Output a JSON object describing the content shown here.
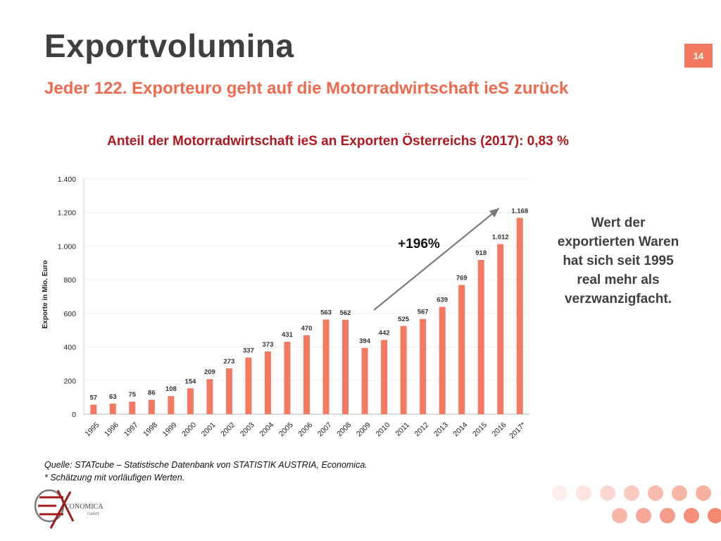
{
  "slide": {
    "title": "Exportvolumina",
    "page_number": "14",
    "subtitle": "Jeder 122. Exporteuro geht auf die Motorradwirtschaft ieS zurück",
    "side_note_lines": [
      "Wert der",
      "exportierten Waren",
      "hat sich seit 1995",
      "real mehr als",
      "verzwanzigfacht."
    ],
    "source_lines": [
      "Quelle: STATcube – Statistische Datenbank von STATISTIK AUSTRIA, Economica.",
      "* Schätzung mit vorläufigen Werten."
    ],
    "logo_text": "CONOMICA",
    "logo_subtext": "GmbH"
  },
  "chart_data": {
    "type": "bar",
    "title": "Anteil der Motorradwirtschaft ieS an Exporten Österreichs (2017): 0,83 %",
    "xlabel": "",
    "ylabel": "Exporte in Mio. Euro",
    "ylim": [
      0,
      1400
    ],
    "yticks": [
      0,
      200,
      400,
      600,
      800,
      1000,
      1200,
      1400
    ],
    "ytick_labels": [
      "0",
      "200",
      "400",
      "600",
      "800",
      "1.000",
      "1.200",
      "1.400"
    ],
    "categories": [
      "1995",
      "1996",
      "1997",
      "1998",
      "1999",
      "2000",
      "2001",
      "2002",
      "2003",
      "2004",
      "2005",
      "2006",
      "2007",
      "2008",
      "2009",
      "2010",
      "2011",
      "2012",
      "2013",
      "2014",
      "2015",
      "2016",
      "2017*"
    ],
    "values": [
      57,
      63,
      75,
      86,
      108,
      154,
      209,
      273,
      337,
      373,
      431,
      470,
      563,
      562,
      394,
      442,
      525,
      567,
      639,
      769,
      918,
      1012,
      1168
    ],
    "value_labels": [
      "57",
      "63",
      "75",
      "86",
      "108",
      "154",
      "209",
      "273",
      "337",
      "373",
      "431",
      "470",
      "563",
      "562",
      "394",
      "442",
      "525",
      "567",
      "639",
      "769",
      "918",
      "1.012",
      "1.168"
    ],
    "bar_color": "#f37a61",
    "grid": true,
    "annotation": {
      "text": "+196%",
      "arrow_from": [
        "2009",
        620
      ],
      "arrow_to": [
        "2016",
        1225
      ]
    }
  }
}
